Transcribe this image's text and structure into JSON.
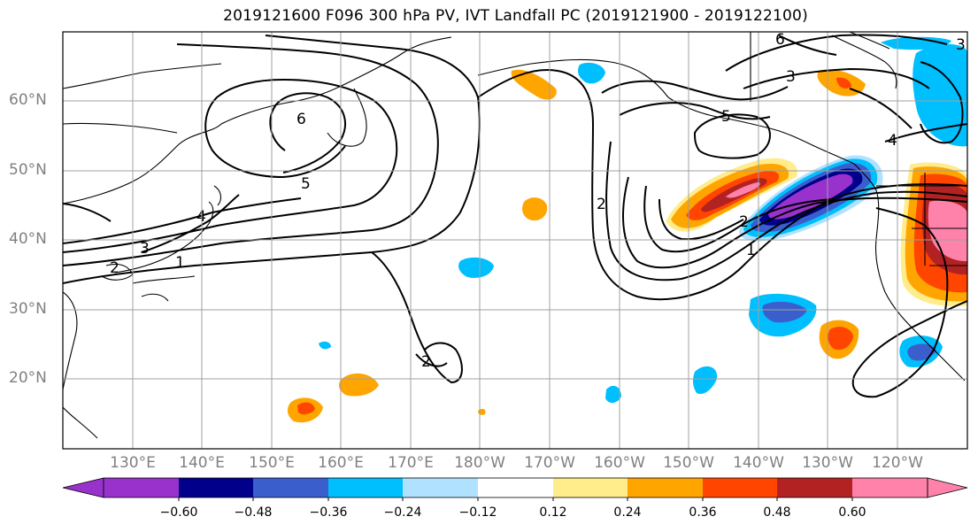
{
  "title": "2019121600 F096 300 hPa PV, IVT Landfall PC (2019121900 - 2019122100)",
  "lat_labels": [
    "60°N",
    "50°N",
    "40°N",
    "30°N",
    "20°N"
  ],
  "lon_labels": [
    "130°E",
    "140°E",
    "150°E",
    "160°E",
    "170°E",
    "180°W",
    "170°W",
    "160°W",
    "150°W",
    "140°W",
    "130°W",
    "120°W"
  ],
  "contour_labels": [
    "6",
    "5",
    "4",
    "3",
    "2",
    "1",
    "2",
    "2",
    "5",
    "6",
    "3",
    "4",
    "1",
    "2",
    "3"
  ],
  "colorbar": {
    "tick_labels": [
      "−0.60",
      "−0.48",
      "−0.36",
      "−0.24",
      "−0.12",
      "0.12",
      "0.24",
      "0.36",
      "0.48",
      "0.60"
    ],
    "colors": [
      "#9932cc",
      "#00008b",
      "#3a5fcd",
      "#00bfff",
      "#b0e2ff",
      "#ffffff",
      "#ffec8b",
      "#ffa500",
      "#ff4500",
      "#b22222",
      "#ff82ab"
    ]
  }
}
